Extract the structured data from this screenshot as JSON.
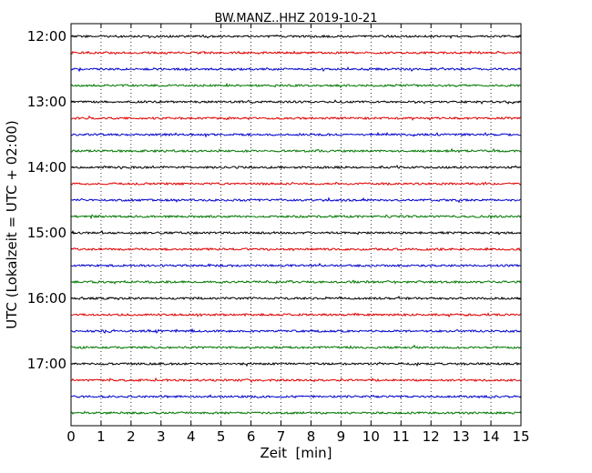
{
  "chart_data": {
    "type": "line",
    "subtype": "helicorder / dayplot",
    "title": "BW.MANZ..HHZ 2019-10-21",
    "xlabel": "Zeit  [min]",
    "ylabel": "UTC (Lokalzeit = UTC + 02:00)",
    "xlim": [
      0,
      15
    ],
    "x_ticks": [
      "0",
      "1",
      "2",
      "3",
      "4",
      "5",
      "6",
      "7",
      "8",
      "9",
      "10",
      "11",
      "12",
      "13",
      "14",
      "15"
    ],
    "y_ticks": [
      "12:00",
      "13:00",
      "14:00",
      "15:00",
      "16:00",
      "17:00"
    ],
    "row_interval_minutes": 15,
    "first_row_utc": "12:00",
    "last_row_utc": "17:45",
    "grid": "vertical dotted lines at each minute",
    "row_color_cycle": [
      "#000000",
      "#e00000",
      "#0000cc",
      "#007700"
    ],
    "rows": [
      {
        "start": "12:00",
        "color": "#000000"
      },
      {
        "start": "12:15",
        "color": "#e00000"
      },
      {
        "start": "12:30",
        "color": "#0000cc"
      },
      {
        "start": "12:45",
        "color": "#007700"
      },
      {
        "start": "13:00",
        "color": "#000000"
      },
      {
        "start": "13:15",
        "color": "#e00000"
      },
      {
        "start": "13:30",
        "color": "#0000cc"
      },
      {
        "start": "13:45",
        "color": "#007700"
      },
      {
        "start": "14:00",
        "color": "#000000"
      },
      {
        "start": "14:15",
        "color": "#e00000"
      },
      {
        "start": "14:30",
        "color": "#0000cc"
      },
      {
        "start": "14:45",
        "color": "#007700"
      },
      {
        "start": "15:00",
        "color": "#000000"
      },
      {
        "start": "15:15",
        "color": "#e00000"
      },
      {
        "start": "15:30",
        "color": "#0000cc"
      },
      {
        "start": "15:45",
        "color": "#007700"
      },
      {
        "start": "16:00",
        "color": "#000000"
      },
      {
        "start": "16:15",
        "color": "#e00000"
      },
      {
        "start": "16:30",
        "color": "#0000cc"
      },
      {
        "start": "16:45",
        "color": "#007700"
      },
      {
        "start": "17:00",
        "color": "#000000"
      },
      {
        "start": "17:15",
        "color": "#e00000"
      },
      {
        "start": "17:30",
        "color": "#0000cc"
      },
      {
        "start": "17:45",
        "color": "#007700"
      }
    ]
  }
}
